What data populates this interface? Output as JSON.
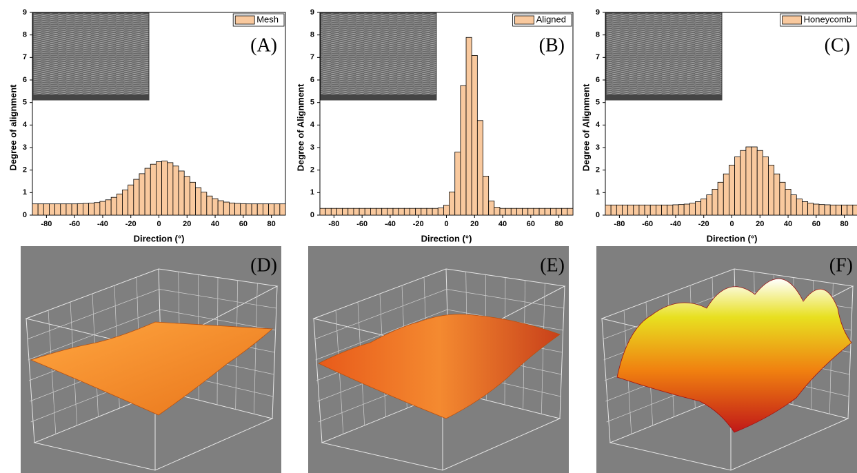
{
  "chart_data": [
    {
      "type": "histogram",
      "annotation": "(A)",
      "x_label": "Direction (°)",
      "y_label": "Degree of alignment",
      "series": [
        {
          "name": "Mesh",
          "color": "#f9c99e",
          "edgecolor": "#000000",
          "values": [
            0.5,
            0.5,
            0.5,
            0.5,
            0.5,
            0.5,
            0.5,
            0.5,
            0.51,
            0.52,
            0.53,
            0.56,
            0.61,
            0.68,
            0.79,
            0.94,
            1.12,
            1.34,
            1.59,
            1.84,
            2.08,
            2.26,
            2.37,
            2.4,
            2.33,
            2.18,
            1.96,
            1.72,
            1.46,
            1.22,
            1.02,
            0.85,
            0.73,
            0.64,
            0.58,
            0.54,
            0.52,
            0.51,
            0.5,
            0.5,
            0.5,
            0.5,
            0.5,
            0.5,
            0.5
          ]
        }
      ],
      "bins": [
        -90,
        -86,
        -82,
        -78,
        -74,
        -70,
        -66,
        -62,
        -58,
        -54,
        -50,
        -46,
        -42,
        -38,
        -34,
        -30,
        -26,
        -22,
        -18,
        -14,
        -10,
        -6,
        -2,
        2,
        6,
        10,
        14,
        18,
        22,
        26,
        30,
        34,
        38,
        42,
        46,
        50,
        54,
        58,
        62,
        66,
        70,
        74,
        78,
        82,
        86,
        90
      ],
      "xlim": [
        -90,
        90
      ],
      "xticks": [
        -80,
        -60,
        -40,
        -20,
        0,
        20,
        40,
        60,
        80
      ],
      "ylim": [
        0,
        9
      ],
      "yticks": [
        0,
        1,
        2,
        3,
        4,
        5,
        6,
        7,
        8,
        9
      ],
      "legend": "upper right"
    },
    {
      "type": "histogram",
      "annotation": "(B)",
      "x_label": "Direction (°)",
      "y_label": "Degree of Alignment",
      "series": [
        {
          "name": "Aligned",
          "color": "#f9c99e",
          "edgecolor": "#000000",
          "values": [
            0.3,
            0.3,
            0.3,
            0.3,
            0.3,
            0.3,
            0.3,
            0.3,
            0.3,
            0.3,
            0.3,
            0.3,
            0.3,
            0.3,
            0.3,
            0.3,
            0.3,
            0.3,
            0.3,
            0.3,
            0.3,
            0.32,
            0.44,
            1.03,
            2.8,
            5.75,
            7.89,
            7.09,
            4.2,
            1.73,
            0.63,
            0.35,
            0.3,
            0.3,
            0.3,
            0.3,
            0.3,
            0.3,
            0.3,
            0.3,
            0.3,
            0.3,
            0.3,
            0.3,
            0.3
          ]
        }
      ],
      "bins": [
        -90,
        -86,
        -82,
        -78,
        -74,
        -70,
        -66,
        -62,
        -58,
        -54,
        -50,
        -46,
        -42,
        -38,
        -34,
        -30,
        -26,
        -22,
        -18,
        -14,
        -10,
        -6,
        -2,
        2,
        6,
        10,
        14,
        18,
        22,
        26,
        30,
        34,
        38,
        42,
        46,
        50,
        54,
        58,
        62,
        66,
        70,
        74,
        78,
        82,
        86,
        90
      ],
      "xlim": [
        -90,
        90
      ],
      "xticks": [
        -80,
        -60,
        -40,
        -20,
        0,
        20,
        40,
        60,
        80
      ],
      "ylim": [
        0,
        9
      ],
      "yticks": [
        0,
        1,
        2,
        3,
        4,
        5,
        6,
        7,
        8,
        9
      ],
      "legend": "upper right"
    },
    {
      "type": "histogram",
      "annotation": "(C)",
      "x_label": "Direction (°)",
      "y_label": "Degree of Alignment",
      "series": [
        {
          "name": "Honeycomb",
          "color": "#f9c99e",
          "edgecolor": "#000000",
          "values": [
            0.45,
            0.45,
            0.45,
            0.45,
            0.45,
            0.45,
            0.45,
            0.45,
            0.45,
            0.45,
            0.45,
            0.45,
            0.46,
            0.47,
            0.49,
            0.53,
            0.6,
            0.72,
            0.9,
            1.15,
            1.46,
            1.83,
            2.22,
            2.59,
            2.87,
            3.03,
            3.03,
            2.87,
            2.59,
            2.22,
            1.83,
            1.46,
            1.15,
            0.9,
            0.72,
            0.6,
            0.53,
            0.49,
            0.47,
            0.46,
            0.45,
            0.45,
            0.45,
            0.45,
            0.45
          ]
        }
      ],
      "bins": [
        -90,
        -86,
        -82,
        -78,
        -74,
        -70,
        -66,
        -62,
        -58,
        -54,
        -50,
        -46,
        -42,
        -38,
        -34,
        -30,
        -26,
        -22,
        -18,
        -14,
        -10,
        -6,
        -2,
        2,
        6,
        10,
        14,
        18,
        22,
        26,
        30,
        34,
        38,
        42,
        46,
        50,
        54,
        58,
        62,
        66,
        70,
        74,
        78,
        82,
        86,
        90
      ],
      "xlim": [
        -90,
        90
      ],
      "xticks": [
        -80,
        -60,
        -40,
        -20,
        0,
        20,
        40,
        60,
        80
      ],
      "ylim": [
        0,
        9
      ],
      "yticks": [
        0,
        1,
        2,
        3,
        4,
        5,
        6,
        7,
        8,
        9
      ],
      "legend": "upper right"
    }
  ],
  "surface_panels": [
    {
      "label": "(D)"
    },
    {
      "label": "(E)"
    },
    {
      "label": "(F)"
    }
  ]
}
